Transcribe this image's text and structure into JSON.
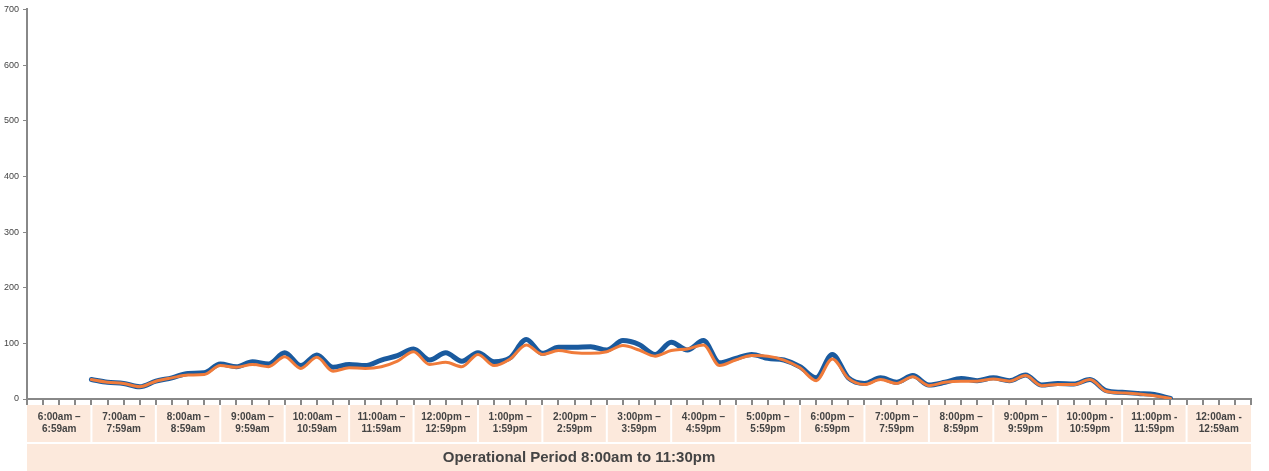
{
  "chart_data": {
    "type": "line",
    "categories": [
      null,
      null,
      "6:00am – 6:59am",
      null,
      null,
      null,
      "7:00am – 7:59am",
      null,
      null,
      null,
      "8:00am – 8:59am",
      null,
      null,
      null,
      "9:00am – 9:59am",
      null,
      null,
      null,
      "10:00am – 10:59am",
      null,
      null,
      null,
      "11:00am – 11:59am",
      null,
      null,
      null,
      "12:00pm – 12:59pm",
      null,
      null,
      null,
      "1:00pm – 1:59pm",
      null,
      null,
      null,
      "2:00pm – 2:59pm",
      null,
      null,
      null,
      "3:00pm – 3:59pm",
      null,
      null,
      null,
      "4:00pm – 4:59pm",
      null,
      null,
      null,
      "5:00pm – 5:59pm",
      null,
      null,
      null,
      "6:00pm – 6:59pm",
      null,
      null,
      null,
      "7:00pm – 7:59pm",
      null,
      null,
      null,
      "8:00pm – 8:59pm",
      null,
      null,
      null,
      "9:00pm – 9:59pm",
      null,
      null,
      null,
      "10:00pm - 10:59pm",
      null,
      null,
      null,
      "11:00pm - 11:59pm",
      null,
      null,
      null,
      "12:00am - 12:59am",
      null,
      null
    ],
    "series": [
      {
        "color": "#1a5a9e",
        "values": [
          null,
          null,
          null,
          null,
          35,
          30,
          28,
          22,
          32,
          38,
          46,
          47,
          63,
          58,
          67,
          63,
          83,
          60,
          79,
          57,
          62,
          60,
          70,
          78,
          90,
          70,
          83,
          68,
          83,
          67,
          74,
          107,
          82,
          93,
          93,
          94,
          88,
          105,
          98,
          80,
          102,
          88,
          105,
          65,
          73,
          80,
          73,
          70,
          58,
          38,
          80,
          38,
          28,
          38,
          30,
          42,
          25,
          30,
          37,
          33,
          38,
          33,
          43,
          25,
          28,
          27,
          35,
          15,
          12,
          10,
          8,
          1,
          null,
          null,
          null,
          null,
          null
        ]
      },
      {
        "color": "#f07b3a",
        "values": [
          null,
          null,
          null,
          null,
          35,
          30,
          28,
          22,
          32,
          38,
          43,
          44,
          60,
          57,
          62,
          58,
          76,
          55,
          75,
          50,
          56,
          55,
          58,
          68,
          85,
          62,
          66,
          58,
          80,
          60,
          72,
          97,
          80,
          87,
          83,
          82,
          85,
          96,
          88,
          77,
          87,
          90,
          97,
          60,
          70,
          78,
          77,
          70,
          56,
          33,
          72,
          37,
          26,
          35,
          28,
          40,
          24,
          30,
          32,
          32,
          36,
          32,
          42,
          24,
          26,
          26,
          35,
          14,
          11,
          9,
          6,
          1,
          null,
          null,
          null,
          null,
          null
        ]
      }
    ],
    "ylim": [
      0,
      700
    ],
    "yticks": [
      0,
      100,
      200,
      300,
      400,
      500,
      600,
      700
    ],
    "annotations": [
      "Operational Period 8:00am to 11:30pm"
    ],
    "grid": false,
    "legend": false,
    "marker": "none",
    "line_style": "solid"
  }
}
